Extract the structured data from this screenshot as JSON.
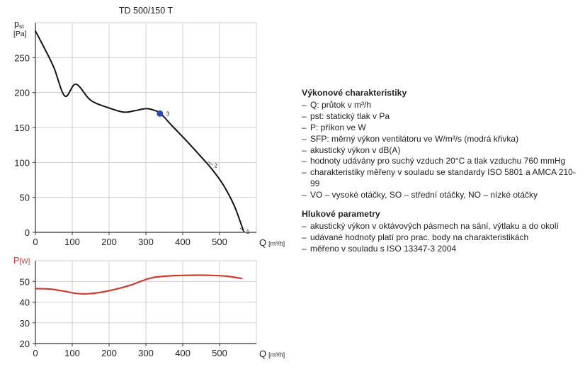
{
  "chart_data": [
    {
      "type": "line",
      "title": "TD 500/150 T",
      "ylabel_main": "p",
      "ylabel_sub": "st",
      "yunit": "[Pa]",
      "xlabel": "Q",
      "xunit": "[m³/h]",
      "xlim": [
        0,
        600
      ],
      "ylim": [
        0,
        300
      ],
      "xticks": [
        0,
        100,
        200,
        300,
        400,
        500
      ],
      "yticks": [
        0,
        50,
        100,
        150,
        200,
        250
      ],
      "grid": true,
      "series": [
        {
          "color": "#111111",
          "x": [
            0,
            20,
            50,
            80,
            110,
            150,
            200,
            240,
            270,
            300,
            320,
            340,
            370,
            410,
            450,
            480,
            510,
            540,
            565
          ],
          "y": [
            288,
            268,
            236,
            195,
            212,
            189,
            178,
            172,
            174,
            177,
            175,
            170,
            153,
            131,
            108,
            90,
            68,
            38,
            2
          ]
        }
      ],
      "points": [
        {
          "x": 338,
          "y": 170,
          "label": "3",
          "color": "#2a49b8",
          "marker": true
        },
        {
          "x": 478,
          "y": 97,
          "label": "2",
          "marker": false
        },
        {
          "x": 565,
          "y": 2,
          "label": "1",
          "marker": false
        }
      ]
    },
    {
      "type": "line",
      "ylabel": "P",
      "yunit": "[W]",
      "xlabel": "Q",
      "xunit": "[m³/h]",
      "xlim": [
        0,
        600
      ],
      "ylim": [
        20,
        60
      ],
      "xticks": [
        0,
        100,
        200,
        300,
        400,
        500
      ],
      "yticks": [
        20,
        30,
        40,
        50
      ],
      "grid": true,
      "series": [
        {
          "color": "#d23a2e",
          "x": [
            0,
            40,
            80,
            110,
            140,
            180,
            220,
            260,
            290,
            320,
            360,
            400,
            440,
            480,
            520,
            560
          ],
          "y": [
            46.5,
            46.3,
            45.2,
            44.2,
            44.0,
            44.8,
            46.3,
            48.3,
            50.3,
            51.9,
            52.6,
            52.9,
            53.0,
            52.9,
            52.5,
            51.4
          ]
        }
      ]
    }
  ],
  "sections": [
    {
      "title": "Výkonové charakteristiky",
      "items": [
        "Q: průtok v m³/h",
        "pst: statický tlak v Pa",
        "P: příkon ve W",
        "SFP: měrný výkon ventilátoru ve W/m³/s (modrá křivka)",
        "akustický výkon v dB(A)",
        "hodnoty udávány pro suchý vzduch 20°C a tlak vzduchu 760 mmHg",
        "charakteristiky měřeny v souladu se standardy ISO 5801 a AMCA 210-99",
        "VO – vysoké otáčky, SO – střední otáčky, NO – nízké otáčky"
      ]
    },
    {
      "title": "Hlukové parametry",
      "items": [
        "akustický výkon v oktávových pásmech na sání, výtlaku a do okolí",
        "udávané hodnoty platí pro prac. body na charakteristikách",
        "měřeno v souladu s ISO 13347-3 2004"
      ]
    }
  ]
}
